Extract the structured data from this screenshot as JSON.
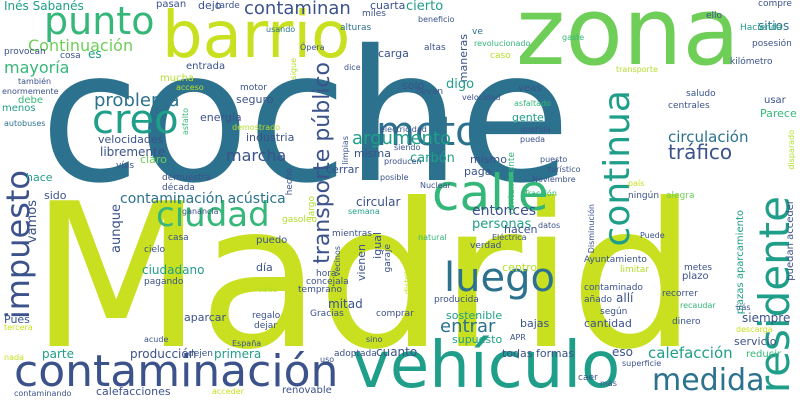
{
  "colors": {
    "background": "#ffffff",
    "palette": [
      "#2c728e",
      "#1f9e89",
      "#35b779",
      "#6ece58",
      "#b5de2b",
      "#c8e020",
      "#3b528b",
      "#482878",
      "#440154"
    ]
  },
  "words": {
    "coche": "coche",
    "madrid": "Madrid",
    "zona": "zona",
    "barrio": "barrio",
    "vehiculo": "vehículo",
    "calle": "calle",
    "contaminacion": "contaminación",
    "residente": "residente",
    "punto": "punto",
    "creo": "creo",
    "moto": "moto",
    "ciudad": "ciudad",
    "luego": "luego",
    "impuesto": "impuesto",
    "continua": "continua",
    "medida": "medida",
    "transporte_publico": "transporte público",
    "contaminan": "contaminan",
    "continuacion": "Continuación",
    "mayoria": "mayoría",
    "problema": "problema",
    "argumento": "argumento",
    "trafico": "tráfico",
    "circulacion": "circulación",
    "contaminacion_acustica": "contaminación acústica",
    "entrar": "entrar",
    "calefaccion": "calefacción",
    "entonces": "entonces",
    "personas": "personas",
    "marcha": "marcha",
    "ines_sabanes": "Inés Sabanés",
    "sitios": "sitios",
    "cierto": "cierto",
    "cuarta": "cuarta",
    "miles": "miles",
    "dejo": "dejo",
    "tarde": "tarde",
    "pasan": "pasan",
    "ello": "ello",
    "compre": "compre",
    "hacienda": "Hacienda",
    "posesion": "posesión",
    "kilometro": "kilómetro",
    "gaste": "gaste",
    "caso": "caso",
    "ve": "ve",
    "beneficio": "beneficio",
    "revolucionado": "revolucionado",
    "altas": "altas",
    "carga": "carga",
    "maneras": "maneras",
    "opera": "Ópera",
    "alturas": "alturas",
    "usando": "usando",
    "provocan": "provocan",
    "cosa": "cosa",
    "es": "es",
    "tambien": "también",
    "enormemente": "enormemente",
    "debe": "debe",
    "menos": "menos",
    "autobuses": "autobuses",
    "mucha": "mucha",
    "entrada": "entrada",
    "dice": "dice",
    "sigue": "sigue",
    "solo": "solo",
    "digo": "digo",
    "llevan": "llevan",
    "velocidad": "velocidad",
    "transporte": "transporte",
    "usar": "usar",
    "parece": "Parece",
    "saludo": "saludo",
    "centrales": "centrales",
    "disparado": "disparado",
    "motor": "motor",
    "seguro": "seguro",
    "acceso": "acceso",
    "asfalto": "asfalto",
    "asfaltado": "asfaltado",
    "veas": "veas",
    "gente": "gente",
    "querida": "querida",
    "pueda": "pueda",
    "energia": "energía",
    "demostrado": "demostrado",
    "industria": "industria",
    "electricidad": "electricidad",
    "velocidades": "velocidades",
    "claro": "claro",
    "vias": "vías",
    "libremente": "libremente",
    "demuestra": "demuestra",
    "decada": "década",
    "misma": "misma",
    "carbon": "carbón",
    "limpias": "limpias",
    "siendo": "siendo",
    "producen": "producen",
    "posible": "posible",
    "mismo": "mismo",
    "puesto": "puesto",
    "turistico": "turístico",
    "noviembre": "Noviembre",
    "hace": "hace",
    "sido": "sido",
    "ganancia": "ganancia",
    "hecho": "hecho",
    "cerrar": "cerrar",
    "paga": "paga",
    "nuclear": "Nuclear",
    "contaminante": "contaminante",
    "traccion": "Tracción",
    "pais": "país",
    "ningun": "ningún",
    "alegra": "alegra",
    "vamos": "vamos",
    "aunque": "aunque",
    "circular": "circular",
    "largo": "largo",
    "semana": "semana",
    "hacen": "hacen",
    "electrica": "Eléctrica",
    "datos": "datos",
    "disminucion": "Disminución",
    "puede": "Puede",
    "plazas_aparcamiento": "plazas aparcamiento",
    "puedan_acceder": "puedan acceder",
    "gasoleo": "gasoleo",
    "mientras": "mientras",
    "natural": "natural",
    "verdad": "verdad",
    "cielo": "cielo",
    "casa": "casa",
    "puedo": "puedo",
    "pagando": "pagando",
    "ciudadano": "ciudadano",
    "dia": "día",
    "vecinos": "vecinos",
    "vienen": "vienen",
    "igual": "igual",
    "garaje": "garaje",
    "centro": "centro",
    "ayuntamiento": "Ayuntamiento",
    "limitar": "limitar",
    "metes": "metes",
    "plazo": "plazo",
    "temprano": "temprano",
    "hora": "hora",
    "concejala": "concejala",
    "mitad": "mitad",
    "contaminado": "contaminado",
    "anado": "añado",
    "alli": "allí",
    "segun": "según",
    "recorrer": "recorrer",
    "recaudar": "recaudar",
    "dinero": "dinero",
    "descarga": "descarga",
    "siempre": "siempre",
    "ires": "irás",
    "servicio": "servicio",
    "reducir": "reducir",
    "pues": "Pues",
    "tercera": "tercera",
    "cada": "cada",
    "regalo": "regalo",
    "aparcar": "aparcar",
    "dejar": "dejar",
    "gracias": "Gracias",
    "producida": "producida",
    "comprar": "comprar",
    "distrito": "distrito",
    "sostenible": "sostenible",
    "bajas": "bajas",
    "cantidad": "cantidad",
    "supuesto": "supuesto",
    "parte": "parte",
    "produccion": "producción",
    "primera": "primera",
    "cuanto": "cuanto",
    "todas_formas": "todas formas",
    "eso": "eso",
    "nada": "nada",
    "acude": "acude",
    "dejen": "dejen",
    "espana": "España",
    "adoptada": "adoptada",
    "sino": "sino",
    "apr": "APR",
    "uso": "uso",
    "calefacciones": "calefacciones",
    "acceder": "acceder",
    "renovable": "renovable",
    "caer": "caer",
    "mas": "más",
    "superficie": "superficie",
    "contaminando": "contaminando"
  }
}
